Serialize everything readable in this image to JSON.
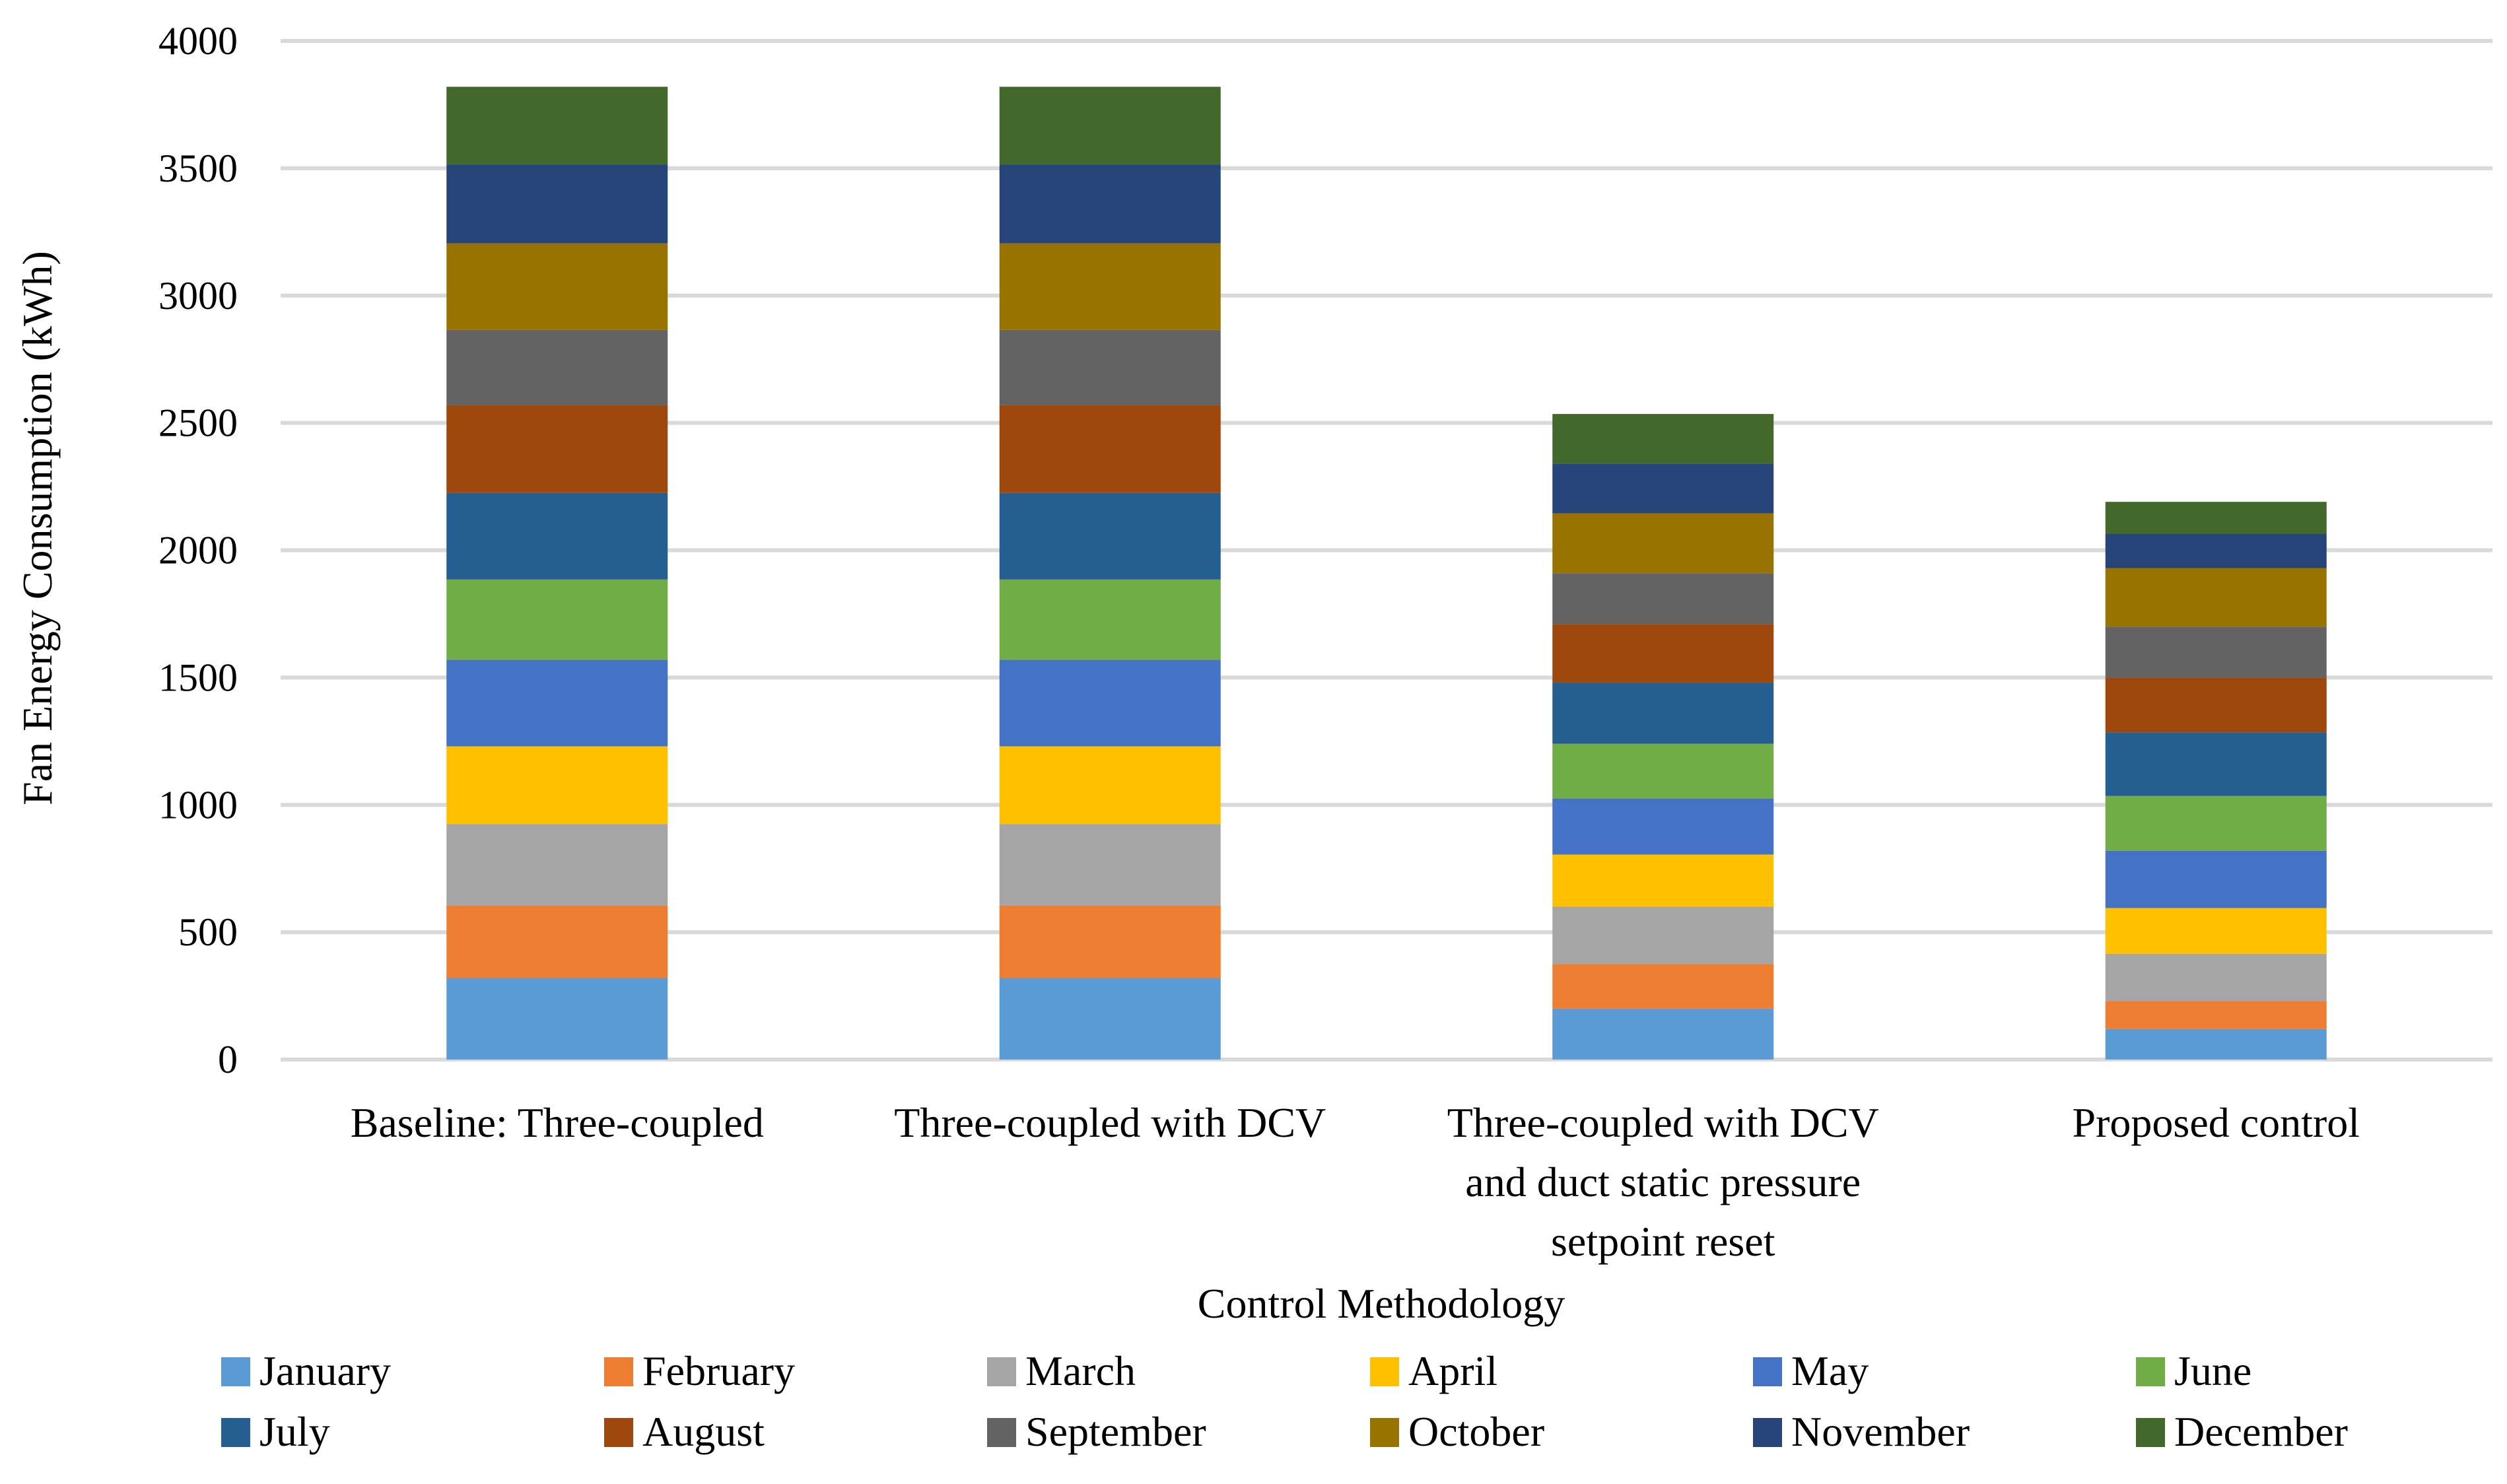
{
  "chart_data": {
    "type": "bar",
    "stacked": true,
    "title": "",
    "xlabel": "Control Methodology",
    "ylabel": "Fan Energy Consumption (kWh)",
    "ylim": [
      0,
      4000
    ],
    "yticks": [
      "0",
      "500",
      "1000",
      "1500",
      "2000",
      "2500",
      "3000",
      "3500",
      "4000"
    ],
    "grid": true,
    "legend_position": "bottom",
    "categories": [
      [
        "Baseline: Three-coupled"
      ],
      [
        "Three-coupled with DCV"
      ],
      [
        "Three-coupled with DCV",
        "and duct static pressure",
        "setpoint reset"
      ],
      [
        "Proposed control"
      ]
    ],
    "series": [
      {
        "name": "January",
        "color": "#5b9bd5",
        "values": [
          320,
          320,
          200,
          120
        ]
      },
      {
        "name": "February",
        "color": "#ed7d31",
        "values": [
          285,
          285,
          175,
          110
        ]
      },
      {
        "name": "March",
        "color": "#a5a5a5",
        "values": [
          320,
          320,
          225,
          185
        ]
      },
      {
        "name": "April",
        "color": "#ffc000",
        "values": [
          305,
          305,
          205,
          180
        ]
      },
      {
        "name": "May",
        "color": "#4472c4",
        "values": [
          340,
          340,
          220,
          225
        ]
      },
      {
        "name": "June",
        "color": "#70ad47",
        "values": [
          315,
          315,
          215,
          215
        ]
      },
      {
        "name": "July",
        "color": "#255e91",
        "values": [
          340,
          340,
          240,
          250
        ]
      },
      {
        "name": "August",
        "color": "#9e480e",
        "values": [
          345,
          345,
          230,
          215
        ]
      },
      {
        "name": "September",
        "color": "#636363",
        "values": [
          295,
          295,
          200,
          200
        ]
      },
      {
        "name": "October",
        "color": "#997300",
        "values": [
          340,
          340,
          235,
          230
        ]
      },
      {
        "name": "November",
        "color": "#264478",
        "values": [
          310,
          310,
          195,
          135
        ]
      },
      {
        "name": "December",
        "color": "#43682b",
        "values": [
          305,
          305,
          195,
          125
        ]
      }
    ]
  }
}
